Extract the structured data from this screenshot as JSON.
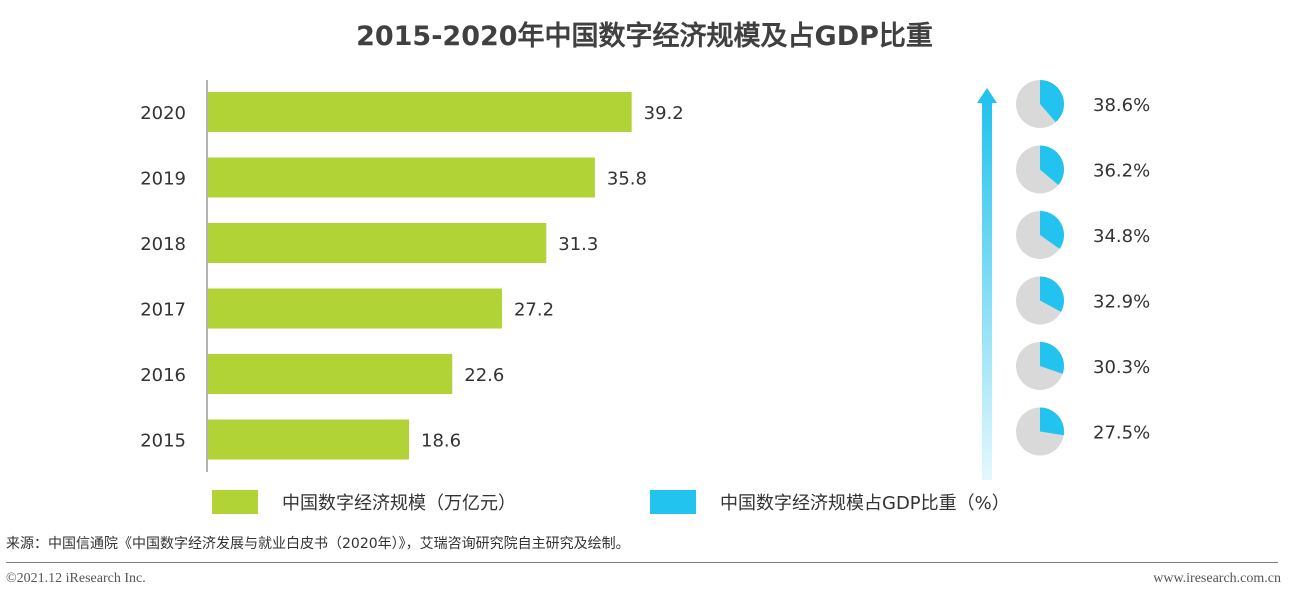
{
  "title": "2015-2020年中国数字经济规模及占GDP比重",
  "chart_data": {
    "type": "bar",
    "orientation": "horizontal",
    "categories": [
      "2020",
      "2019",
      "2018",
      "2017",
      "2016",
      "2015"
    ],
    "series": [
      {
        "name": "中国数字经济规模（万亿元）",
        "values": [
          39.2,
          35.8,
          31.3,
          27.2,
          22.6,
          18.6
        ],
        "color": "#b1d335"
      },
      {
        "name": "中国数字经济规模占GDP比重（%）",
        "values": [
          38.6,
          36.2,
          34.8,
          32.9,
          30.3,
          27.5
        ],
        "labels": [
          "38.6%",
          "36.2%",
          "34.8%",
          "32.9%",
          "30.3%",
          "27.5%"
        ],
        "color": "#22c3ee",
        "display": "pie"
      }
    ],
    "data_labels": [
      "39.2",
      "35.8",
      "31.3",
      "27.2",
      "22.6",
      "18.6"
    ],
    "xlim": [
      0,
      52
    ],
    "grid": false,
    "legend_position": "bottom"
  },
  "colors": {
    "bar": "#b1d335",
    "pie_share": "#22c3ee",
    "pie_rest": "#d9d9d9",
    "arrow": "#22c3ee"
  },
  "legend": {
    "scale_label": "中国数字经济规模（万亿元）",
    "share_label": "中国数字经济规模占GDP比重（%）"
  },
  "footer": {
    "source": "来源：中国信通院《中国数字经济发展与就业白皮书（2020年）》，艾瑞咨询研究院自主研究及绘制。",
    "copyright": "©2021.12 iResearch Inc.",
    "website": "www.iresearch.com.cn"
  }
}
